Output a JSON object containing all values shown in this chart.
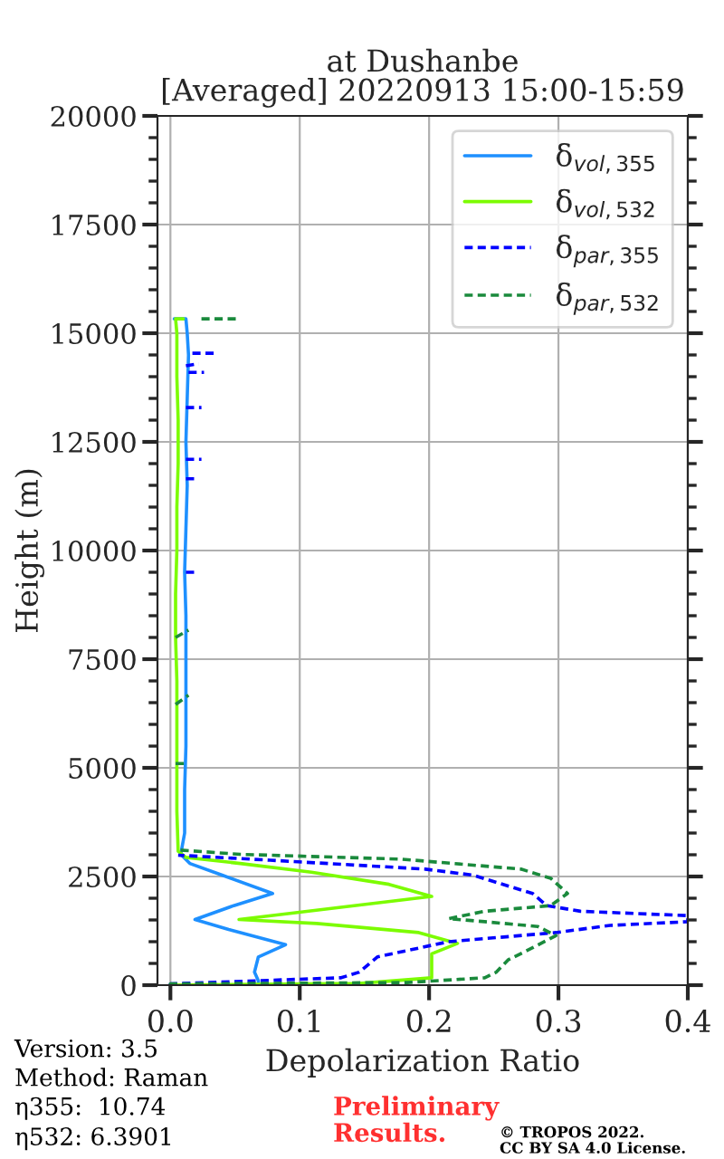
{
  "chart_data": {
    "type": "line",
    "orientation": "horizontal",
    "title": "at Dushanbe\n[Averaged] 20220913 15:00-15:59",
    "xlabel": "Depolarization Ratio",
    "ylabel": "Height (m)",
    "xlim": [
      -0.01,
      0.4
    ],
    "xticks": [
      {
        "value": 0,
        "label": "0.0"
      },
      0.1,
      0.2,
      0.3,
      0.4
    ],
    "ylim": [
      0,
      20000
    ],
    "yticks": [
      0,
      2500,
      5000,
      7500,
      10000,
      12500,
      15000,
      17500,
      20000
    ],
    "grid": true,
    "legend": "top right",
    "series": [
      {
        "name": "δ$_{vol,355}$",
        "color": "#1e90ff",
        "line_style": "solid",
        "x": [
          30,
          100,
          300,
          650,
          930,
          1280,
          1510,
          1830,
          2110,
          2530,
          2800,
          3010,
          3500,
          4500,
          5500,
          6500,
          7500,
          8500,
          9500,
          10500,
          11500,
          12500,
          13500,
          14500,
          15000,
          15330,
          15330
        ],
        "values": [
          0.068,
          0.068,
          0.065,
          0.068,
          0.089,
          0.045,
          0.019,
          0.049,
          0.079,
          0.04,
          0.015,
          0.008,
          0.011,
          0.011,
          0.012,
          0.012,
          0.012,
          0.012,
          0.011,
          0.012,
          0.013,
          0.012,
          0.013,
          0.014,
          0.013,
          0.012,
          0.003
        ]
      },
      {
        "name": "δ$_{vol,532}$",
        "color": "#7cfc00",
        "line_style": "solid",
        "x": [
          0,
          40,
          170,
          720,
          960,
          1210,
          1420,
          1510,
          1760,
          2040,
          2320,
          2600,
          2800,
          2940,
          3080,
          4000,
          5000,
          6000,
          7000,
          8000,
          9000,
          10000,
          11000,
          12000,
          13000,
          14000,
          15000,
          15330,
          15330
        ],
        "values": [
          0.0,
          0.146,
          0.202,
          0.202,
          0.222,
          0.192,
          0.113,
          0.053,
          0.123,
          0.202,
          0.169,
          0.109,
          0.054,
          0.012,
          0.006,
          0.005,
          0.005,
          0.005,
          0.005,
          0.004,
          0.004,
          0.005,
          0.005,
          0.006,
          0.006,
          0.005,
          0.005,
          0.004,
          0.01
        ]
      },
      {
        "name": "δ$_{par,355}$",
        "color": "#0000ff",
        "line_style": "dashed",
        "x": [
          0,
          30,
          170,
          300,
          650,
          1000,
          1210,
          1375,
          1460,
          1600,
          1700,
          1830,
          2110,
          2530,
          2670,
          2875,
          2990,
          null,
          9500,
          9500,
          null,
          11650,
          11650,
          null,
          12100,
          12100,
          null,
          13290,
          13290,
          null,
          14100,
          14100,
          null,
          14250,
          14300,
          null,
          14540,
          14540
        ],
        "values": [
          0.0,
          0.0,
          0.132,
          0.146,
          0.16,
          0.215,
          0.298,
          0.34,
          0.4,
          0.4,
          0.317,
          0.291,
          0.28,
          0.234,
          0.197,
          0.077,
          0.006,
          null,
          0.012,
          0.022,
          null,
          0.012,
          0.022,
          null,
          0.012,
          0.024,
          null,
          0.012,
          0.024,
          null,
          0.014,
          0.026,
          null,
          0.012,
          0.022,
          null,
          0.017,
          0.037
        ]
      },
      {
        "name": "δ$_{par,532}$",
        "color": "#1a8a3c",
        "line_style": "dashed",
        "x": [
          0,
          30,
          60,
          170,
          300,
          580,
          860,
          1140,
          1350,
          1460,
          1530,
          1700,
          1830,
          2110,
          2460,
          2670,
          2900,
          3010,
          3110,
          null,
          5100,
          5100,
          null,
          6460,
          6670,
          null,
          8000,
          8170,
          null,
          15330,
          15330
        ],
        "values": [
          0.0,
          0.0,
          0.183,
          0.243,
          0.252,
          0.261,
          0.28,
          0.298,
          0.284,
          0.243,
          0.215,
          0.243,
          0.294,
          0.307,
          0.294,
          0.271,
          0.178,
          0.054,
          0.006,
          null,
          0.004,
          0.014,
          null,
          0.004,
          0.014,
          null,
          0.004,
          0.014,
          null,
          0.024,
          0.051
        ]
      }
    ],
    "annotations": [
      "Version: 3.5",
      "Method: Raman",
      "η355:  10.74",
      "η532: 6.3901",
      "Preliminary\nResults.",
      "© TROPOS 2022.\nCC BY SA 4.0 License."
    ]
  }
}
